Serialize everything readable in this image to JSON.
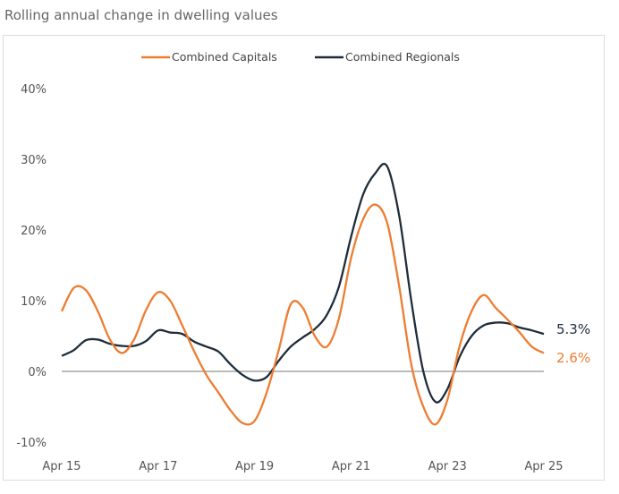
{
  "chart_data": {
    "type": "line",
    "title": "Rolling annual change in dwelling values",
    "xlabel": "",
    "ylabel": "",
    "ylim": [
      -10,
      40
    ],
    "y_ticks": [
      "40%",
      "30%",
      "20%",
      "10%",
      "0%",
      "-10%"
    ],
    "y_tick_values": [
      40,
      30,
      20,
      10,
      0,
      -10
    ],
    "x_tick_labels": [
      "Apr 15",
      "Apr 17",
      "Apr 19",
      "Apr 21",
      "Apr 23",
      "Apr 25"
    ],
    "x": [
      "Apr 15",
      "Jul 15",
      "Oct 15",
      "Jan 16",
      "Apr 16",
      "Jul 16",
      "Oct 16",
      "Jan 17",
      "Apr 17",
      "Jul 17",
      "Oct 17",
      "Jan 18",
      "Apr 18",
      "Jul 18",
      "Oct 18",
      "Jan 19",
      "Apr 19",
      "Jul 19",
      "Oct 19",
      "Jan 20",
      "Apr 20",
      "Jul 20",
      "Oct 20",
      "Jan 21",
      "Apr 21",
      "Jul 21",
      "Oct 21",
      "Jan 22",
      "Apr 22",
      "Jul 22",
      "Oct 22",
      "Jan 23",
      "Apr 23",
      "Jul 23",
      "Oct 23",
      "Jan 24",
      "Apr 24",
      "Jul 24",
      "Oct 24",
      "Jan 25",
      "Apr 25"
    ],
    "grid": false,
    "zero_line": true,
    "legend_position": "top-center",
    "series": [
      {
        "name": "Combined Capitals",
        "color": "#ED7D31",
        "end_label": "2.6%",
        "values": [
          8.5,
          11.8,
          11.5,
          8.5,
          4.5,
          2.6,
          4.5,
          8.7,
          11.2,
          10,
          6.5,
          2.8,
          -0.5,
          -3,
          -5.5,
          -7.3,
          -7,
          -3,
          3,
          9.5,
          9,
          5,
          3.5,
          7.5,
          16,
          21.5,
          23.6,
          21,
          12,
          1,
          -5,
          -7.5,
          -4,
          3.5,
          8.5,
          10.8,
          9,
          7.3,
          5.5,
          3.5,
          2.6
        ]
      },
      {
        "name": "Combined Regionals",
        "color": "#1F2D3A",
        "end_label": "5.3%",
        "values": [
          2.2,
          3,
          4.4,
          4.5,
          3.9,
          3.6,
          3.6,
          4.3,
          5.8,
          5.5,
          5.3,
          4.2,
          3.5,
          2.8,
          1,
          -0.5,
          -1.3,
          -0.8,
          1.5,
          3.5,
          4.8,
          6,
          8,
          12,
          19,
          25,
          28,
          29,
          22,
          10,
          0,
          -4.3,
          -2.5,
          2,
          5,
          6.5,
          6.9,
          6.8,
          6.2,
          5.8,
          5.3
        ]
      }
    ]
  }
}
